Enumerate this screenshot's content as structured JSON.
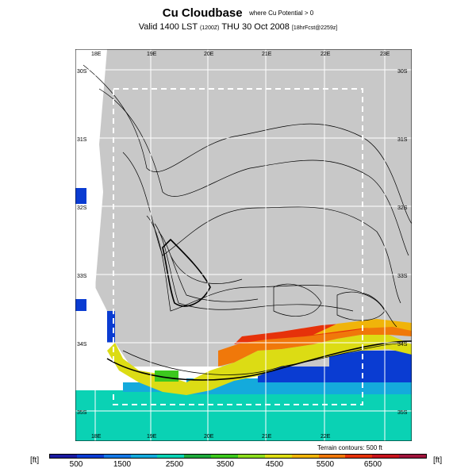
{
  "header": {
    "title": "Cu Cloudbase",
    "title_note": "where Cu Potential > 0",
    "subtitle_main": "Valid 1400 LST",
    "subtitle_run": "(1200Z)",
    "subtitle_date": "THU 30 Oct 2008",
    "subtitle_fcst": "[18hrFcst@2259z]"
  },
  "map": {
    "lon_labels_top": [
      "18E",
      "19E",
      "20E",
      "21E",
      "22E",
      "23E"
    ],
    "lon_labels_bottom": [
      "18E",
      "19E",
      "20E",
      "21E",
      "22E"
    ],
    "lat_labels_left": [
      "30S",
      "31S",
      "32S",
      "33S",
      "34S",
      "35S"
    ],
    "lat_labels_right": [
      "30S",
      "31S",
      "32S",
      "33S",
      "34S",
      "35S"
    ],
    "terrain_note": "Terrain contours: 500 ft"
  },
  "colorbar": {
    "unit_left": "[ft]",
    "unit_right": "[ft]",
    "labels": [
      "500",
      "1500",
      "2500",
      "3500",
      "4500",
      "5500",
      "6500"
    ],
    "colors": [
      "#1a1aa0",
      "#0a3cd2",
      "#1478e6",
      "#14aadc",
      "#0ad2b4",
      "#1eaa3c",
      "#3cc81e",
      "#8cdc1e",
      "#dcdc14",
      "#f0b40a",
      "#f0780a",
      "#e6320a",
      "#c8141e",
      "#a0143c"
    ]
  }
}
